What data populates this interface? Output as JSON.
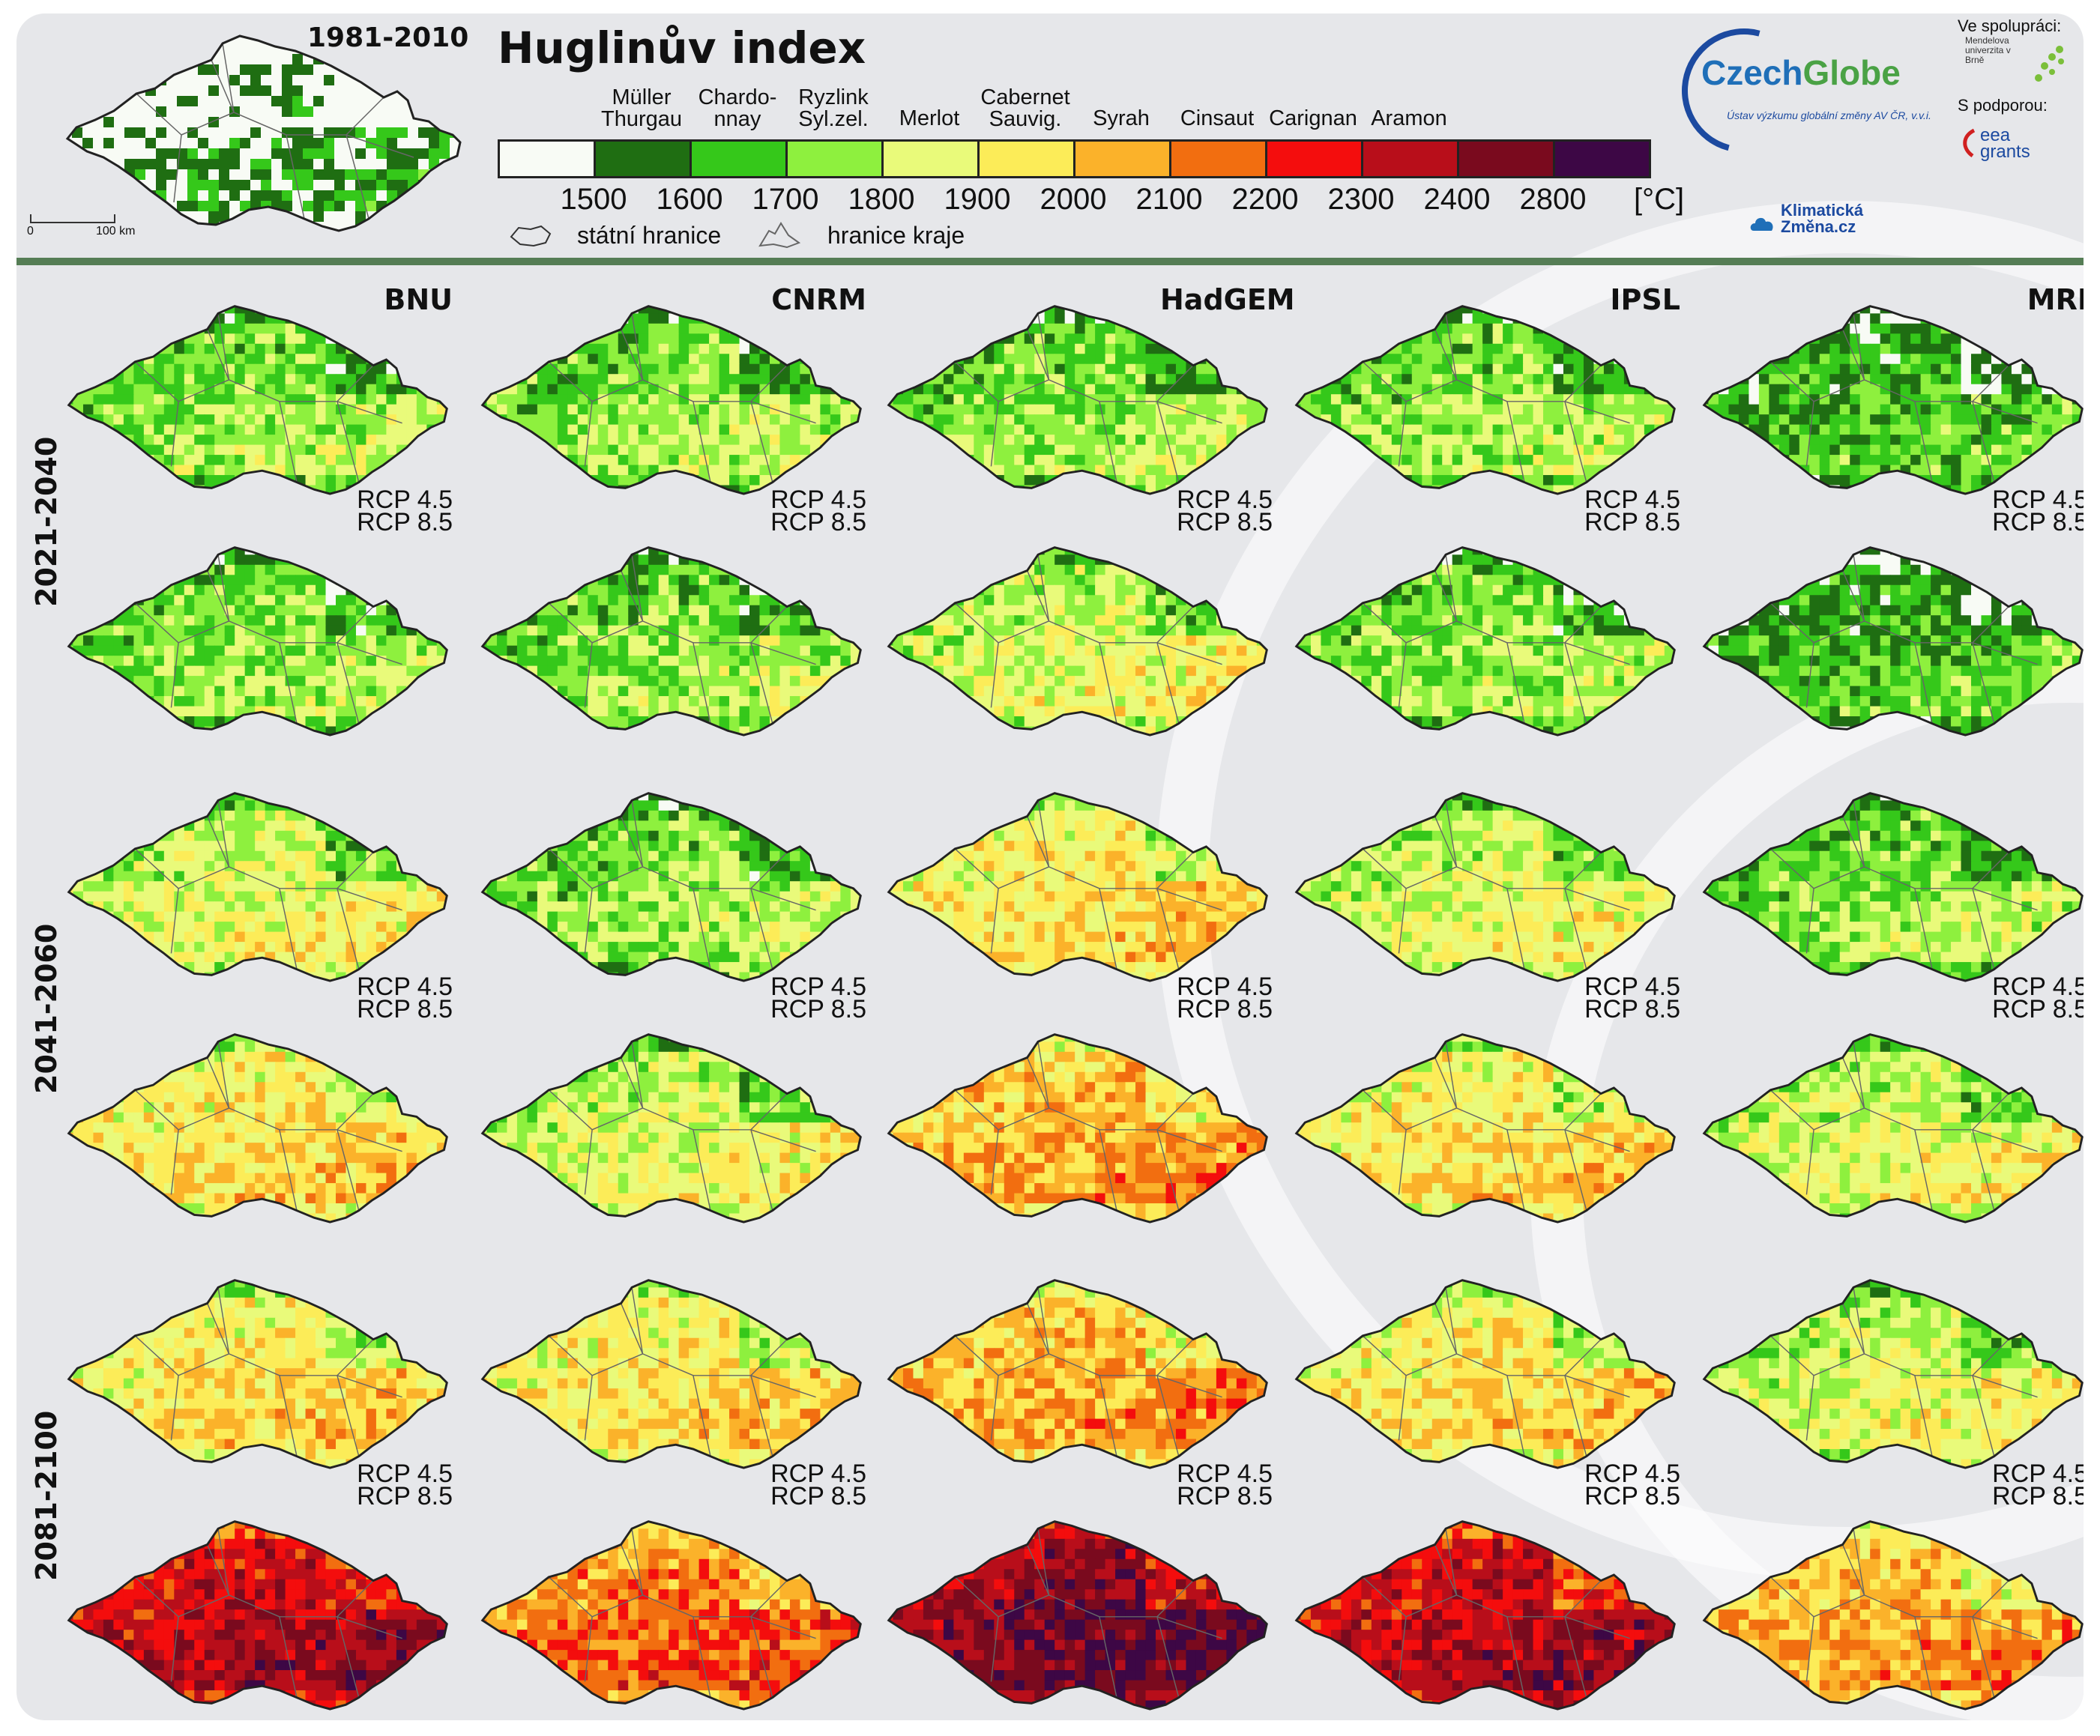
{
  "title": "Huglinův index",
  "baseline_period": "1981-2010",
  "scale_bar": {
    "zero": "0",
    "distance": "100 km"
  },
  "legend": {
    "varieties": [
      "Müller Thurgau",
      "Chardo- nnay",
      "Ryzlink Syl.zel.",
      "Merlot",
      "Cabernet Sauvig.",
      "Syrah",
      "Cinsaut",
      "Carignan",
      "Aramon"
    ],
    "ticks": [
      "1500",
      "1600",
      "1700",
      "1800",
      "1900",
      "2000",
      "2100",
      "2200",
      "2300",
      "2400",
      "2800"
    ],
    "unit": "[°C]",
    "colors": [
      "#f8fbf5",
      "#1f6e12",
      "#35c81a",
      "#8ef03e",
      "#e9fa7a",
      "#fcec58",
      "#fbb22a",
      "#f26e10",
      "#f40d0d",
      "#b80e1a",
      "#7a0a1e",
      "#3d0745"
    ],
    "state_border": "státní hranice",
    "region_border": "hranice kraje"
  },
  "logos": {
    "czechglobe_a": "Czech",
    "czechglobe_b": "Globe",
    "czechglobe_sub": "Ústav výzkumu globální změny AV ČR, v.v.i.",
    "cooperation": "Ve spolupráci:",
    "mendel": "Mendelova univerzita v Brně",
    "support": "S podporou:",
    "eea": "eea grants",
    "klima": "Klimatická Změna.cz"
  },
  "models": [
    "BNU",
    "CNRM",
    "HadGEM",
    "IPSL",
    "MRI"
  ],
  "periods": [
    "2021-2040",
    "2041-2060",
    "2081-2100"
  ],
  "scenarios": [
    "RCP 4.5",
    "RCP 8.5"
  ],
  "mean_index_class": {
    "note_units": "legend class index 0-11 per map (period x scenario x model)",
    "2021-2040": {
      "RCP 4.5": [
        3,
        3,
        3,
        3,
        2
      ],
      "RCP 8.5": [
        3,
        3,
        4,
        3,
        2
      ]
    },
    "2041-2060": {
      "RCP 4.5": [
        4,
        3,
        5,
        4,
        3
      ],
      "RCP 8.5": [
        5,
        4,
        6,
        5,
        4
      ]
    },
    "2081-2100": {
      "RCP 4.5": [
        5,
        5,
        6,
        5,
        4
      ],
      "RCP 8.5": [
        9,
        7,
        10,
        9,
        6
      ]
    }
  }
}
